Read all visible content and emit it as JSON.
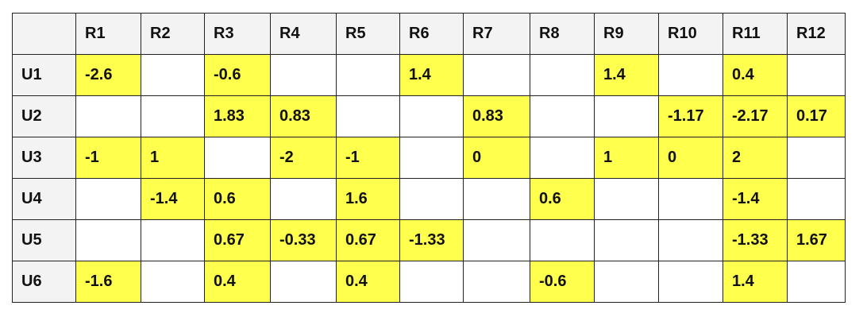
{
  "table": {
    "columns": [
      "R1",
      "R2",
      "R3",
      "R4",
      "R5",
      "R6",
      "R7",
      "R8",
      "R9",
      "R10",
      "R11",
      "R12"
    ],
    "rows": [
      {
        "label": "U1",
        "cells": [
          "-2.6",
          "",
          "-0.6",
          "",
          "",
          "1.4",
          "",
          "",
          "1.4",
          "",
          "0.4",
          ""
        ]
      },
      {
        "label": "U2",
        "cells": [
          "",
          "",
          "1.83",
          "0.83",
          "",
          "",
          "0.83",
          "",
          "",
          "-1.17",
          "-2.17",
          "0.17"
        ]
      },
      {
        "label": "U3",
        "cells": [
          "-1",
          "1",
          "",
          "-2",
          "-1",
          "",
          "0",
          "",
          "1",
          "0",
          "2",
          ""
        ]
      },
      {
        "label": "U4",
        "cells": [
          "",
          "-1.4",
          "0.6",
          "",
          "1.6",
          "",
          "",
          "0.6",
          "",
          "",
          "-1.4",
          ""
        ]
      },
      {
        "label": "U5",
        "cells": [
          "",
          "",
          "0.67",
          "-0.33",
          "0.67",
          "-1.33",
          "",
          "",
          "",
          "",
          "-1.33",
          "1.67"
        ]
      },
      {
        "label": "U6",
        "cells": [
          "-1.6",
          "",
          "0.4",
          "",
          "0.4",
          "",
          "",
          "-0.6",
          "",
          "",
          "1.4",
          ""
        ]
      }
    ],
    "colors": {
      "filled_cell": "#ffff4d",
      "header_background": "#f3f3f3",
      "empty_cell": "#ffffff",
      "border": "#222222"
    }
  }
}
